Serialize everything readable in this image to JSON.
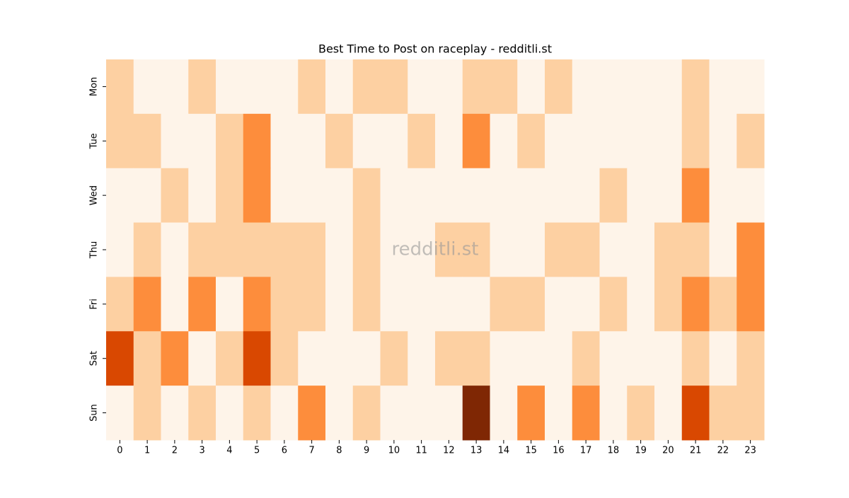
{
  "chart_data": {
    "type": "heatmap",
    "title": "Best Time to Post on raceplay - redditli.st",
    "watermark": "redditli.st",
    "x_categories": [
      "0",
      "1",
      "2",
      "3",
      "4",
      "5",
      "6",
      "7",
      "8",
      "9",
      "10",
      "11",
      "12",
      "13",
      "14",
      "15",
      "16",
      "17",
      "18",
      "19",
      "20",
      "21",
      "22",
      "23"
    ],
    "y_categories": [
      "Mon",
      "Tue",
      "Wed",
      "Thu",
      "Fri",
      "Sat",
      "Sun"
    ],
    "values": [
      [
        1,
        0,
        0,
        1,
        0,
        0,
        0,
        1,
        0,
        1,
        1,
        0,
        0,
        1,
        1,
        0,
        1,
        0,
        0,
        0,
        0,
        1,
        0,
        0
      ],
      [
        1,
        1,
        0,
        0,
        1,
        2,
        0,
        0,
        1,
        0,
        0,
        1,
        0,
        2,
        0,
        1,
        0,
        0,
        0,
        0,
        0,
        1,
        0,
        1
      ],
      [
        0,
        0,
        1,
        0,
        1,
        2,
        0,
        0,
        0,
        1,
        0,
        0,
        0,
        0,
        0,
        0,
        0,
        0,
        1,
        0,
        0,
        2,
        0,
        0
      ],
      [
        0,
        1,
        0,
        1,
        1,
        1,
        1,
        1,
        0,
        1,
        0,
        0,
        1,
        1,
        0,
        0,
        1,
        1,
        0,
        0,
        1,
        1,
        0,
        2
      ],
      [
        1,
        2,
        0,
        2,
        0,
        2,
        1,
        1,
        0,
        1,
        0,
        0,
        0,
        0,
        1,
        1,
        0,
        0,
        1,
        0,
        1,
        2,
        1,
        2
      ],
      [
        3,
        1,
        2,
        0,
        1,
        3,
        1,
        0,
        0,
        0,
        1,
        0,
        1,
        1,
        0,
        0,
        0,
        1,
        0,
        0,
        0,
        1,
        0,
        1
      ],
      [
        0,
        1,
        0,
        1,
        0,
        1,
        0,
        2,
        0,
        1,
        0,
        0,
        0,
        4,
        0,
        2,
        0,
        2,
        0,
        1,
        0,
        3,
        1,
        1
      ]
    ],
    "zlim": [
      0,
      4
    ],
    "colors": [
      "#fef4e9",
      "#fdd0a2",
      "#fd8d3c",
      "#d94801",
      "#7f2704"
    ]
  }
}
